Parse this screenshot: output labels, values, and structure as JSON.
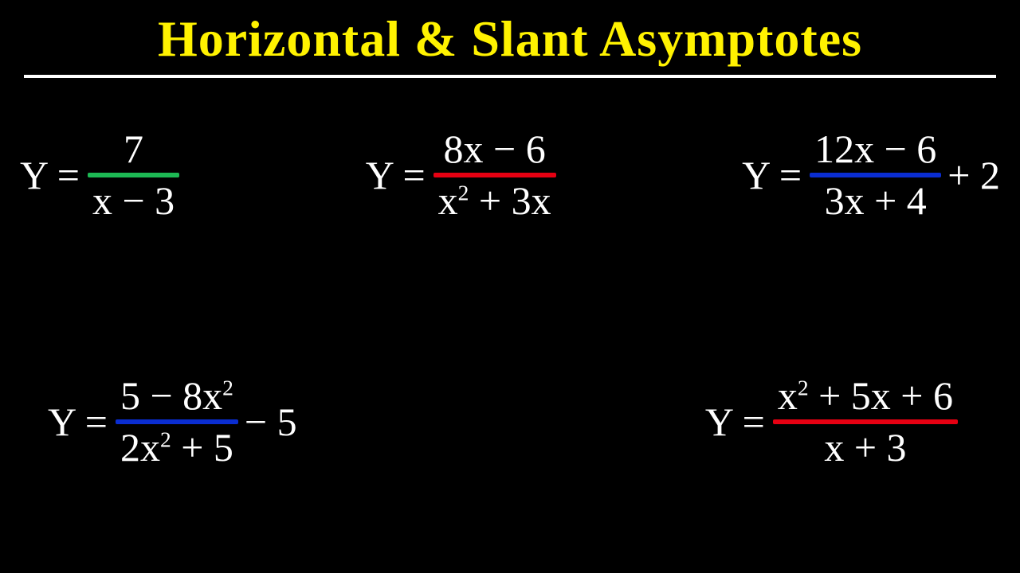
{
  "colors": {
    "background": "#000000",
    "text": "#ffffff",
    "title": "#fff200",
    "green": "#1db954",
    "red": "#e60012",
    "blue": "#0a2dd1"
  },
  "title": "Horizontal & Slant Asymptotes",
  "eq1": {
    "lhs": "Y =",
    "num": "7",
    "den": "x − 3",
    "barColor": "#1db954",
    "tail": ""
  },
  "eq2": {
    "lhs": "Y =",
    "num": "8x − 6",
    "den": "x² + 3x",
    "barColor": "#e60012",
    "tail": ""
  },
  "eq3": {
    "lhs": "Y =",
    "num": "12x − 6",
    "den": "3x + 4",
    "barColor": "#0a2dd1",
    "tail": "+ 2"
  },
  "eq4": {
    "lhs": "Y =",
    "num": "5 − 8x²",
    "den": "2x² + 5",
    "barColor": "#0a2dd1",
    "tail": "− 5"
  },
  "eq5": {
    "lhs": "Y =",
    "num": "x² + 5x + 6",
    "den": "x + 3",
    "barColor": "#e60012",
    "tail": ""
  }
}
